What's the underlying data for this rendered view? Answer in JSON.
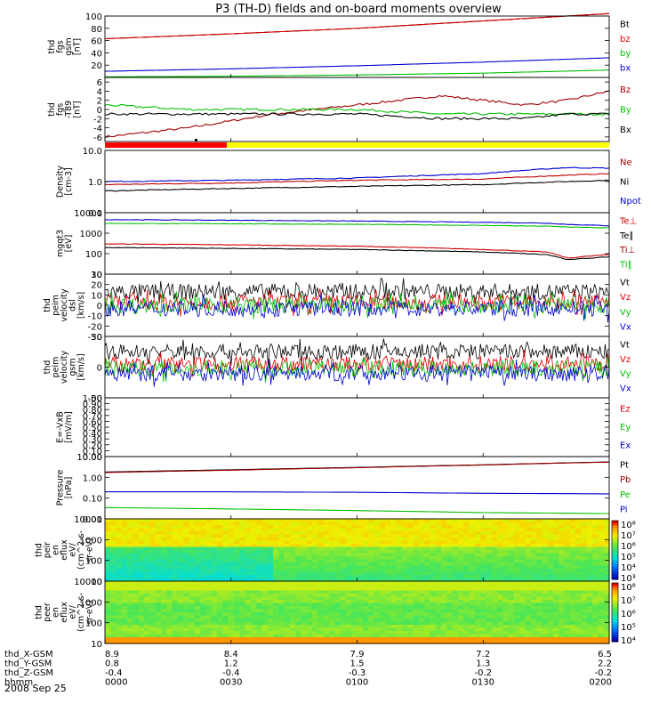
{
  "title": "P3 (TH-D) fields and on-board moments overview",
  "date_label": "2008 Sep 25",
  "ephemeris": {
    "rows": [
      {
        "label": "thd_X-GSM",
        "values": [
          "8.9",
          "8.4",
          "7.9",
          "7.2",
          "6.5"
        ]
      },
      {
        "label": "thd_Y-GSM",
        "values": [
          "0.8",
          "1.2",
          "1.5",
          "1.3",
          "2.2"
        ]
      },
      {
        "label": "thd_Z-GSM",
        "values": [
          "-0.4",
          "-0.4",
          "-0.3",
          "-0.2",
          "-0.2"
        ]
      },
      {
        "label": "hhmm",
        "values": [
          "0000",
          "0030",
          "0100",
          "0130",
          "0200"
        ]
      }
    ]
  },
  "panels": [
    {
      "id": "fgs",
      "ylabel": [
        "thd",
        "fgs",
        "gsm",
        "[nT]"
      ],
      "ticks": [
        "20",
        "40",
        "60",
        "80",
        "100"
      ],
      "legend": [
        {
          "text": "Bt",
          "color": "#000000"
        },
        {
          "text": "bz",
          "color": "#e00000"
        },
        {
          "text": "by",
          "color": "#00c000"
        },
        {
          "text": "bx",
          "color": "#0000d0"
        }
      ]
    },
    {
      "id": "fgs_dev",
      "ylabel": [
        "thd",
        "fgs",
        "-T89",
        "[nT]"
      ],
      "ticks": [
        "-6",
        "-4",
        "-2",
        "0",
        "2",
        "4",
        "6"
      ],
      "legend": [
        {
          "text": "Bz",
          "color": "#a00000"
        },
        {
          "text": "By",
          "color": "#00c000"
        },
        {
          "text": "Bx",
          "color": "#000000"
        }
      ]
    },
    {
      "id": "density",
      "ylabel": [
        "Density",
        "[cm-3]"
      ],
      "ticks": [
        "0.1",
        "1.0",
        "10.0"
      ],
      "legend": [
        {
          "text": "Ne",
          "color": "#a00000"
        },
        {
          "text": "Ni",
          "color": "#000000"
        },
        {
          "text": "Npot",
          "color": "#0000d0"
        }
      ]
    },
    {
      "id": "temp",
      "ylabel": [
        "mgqt3",
        "[eV]"
      ],
      "ticks": [
        "10",
        "100",
        "1000",
        "10000"
      ],
      "legend": [
        {
          "text": "Te⊥",
          "color": "#d00000"
        },
        {
          "text": "Te∥",
          "color": "#000000"
        },
        {
          "text": "Ti⊥",
          "color": "#a00000"
        },
        {
          "text": "Ti∥",
          "color": "#00c000"
        }
      ]
    },
    {
      "id": "peim_dsl",
      "ylabel": [
        "thd",
        "peim",
        "velocity",
        "dsl",
        "[km/s]"
      ],
      "ticks": [
        "-30",
        "-20",
        "-10",
        "0",
        "10",
        "20",
        "30"
      ],
      "legend": [
        {
          "text": "Vt",
          "color": "#000000"
        },
        {
          "text": "Vz",
          "color": "#e00000"
        },
        {
          "text": "Vy",
          "color": "#00c000"
        },
        {
          "text": "Vx",
          "color": "#0000d0"
        }
      ]
    },
    {
      "id": "peim_gsm",
      "ylabel": [
        "thd",
        "peim",
        "velocity",
        "gsm",
        "[km/s]"
      ],
      "ticks": [
        "-50",
        "0",
        "50"
      ],
      "legend": [
        {
          "text": "Vt",
          "color": "#000000"
        },
        {
          "text": "Vz",
          "color": "#e00000"
        },
        {
          "text": "Vy",
          "color": "#00c000"
        },
        {
          "text": "Vx",
          "color": "#0000d0"
        }
      ]
    },
    {
      "id": "efield",
      "ylabel": [
        "E=-VxB",
        "[mV/m]"
      ],
      "ticks": [
        "0.00",
        "0.10",
        "0.20",
        "0.30",
        "0.40",
        "0.50",
        "0.60",
        "0.70",
        "0.80",
        "0.90",
        "1.00"
      ],
      "legend": [
        {
          "text": "Ez",
          "color": "#e00000"
        },
        {
          "text": "Ey",
          "color": "#00c000"
        },
        {
          "text": "Ex",
          "color": "#0000d0"
        }
      ]
    },
    {
      "id": "pressure",
      "ylabel": [
        "Pressure",
        "[nPa]"
      ],
      "ticks": [
        "0.01",
        "0.10",
        "1.00",
        "10.00"
      ],
      "legend": [
        {
          "text": "Pt",
          "color": "#000000"
        },
        {
          "text": "Pb",
          "color": "#a00000"
        },
        {
          "text": "Pe",
          "color": "#00c000"
        },
        {
          "text": "Pi",
          "color": "#0000d0"
        }
      ]
    },
    {
      "id": "peir",
      "ylabel": [
        "thd",
        "peir",
        "en",
        "eflux",
        "eV/",
        "(cm^2-s-",
        "sr-eV)"
      ],
      "ticks": [
        "10",
        "100",
        "1000",
        "10000"
      ],
      "colorbar_ticks": [
        "10³",
        "10⁴",
        "10⁵",
        "10⁶",
        "10⁷",
        "10⁸"
      ]
    },
    {
      "id": "peer",
      "ylabel": [
        "thd",
        "peer",
        "en",
        "eflux",
        "eV/",
        "(cm^2-s-",
        "sr-eV)"
      ],
      "ticks": [
        "10",
        "100",
        "1000",
        "10000"
      ],
      "colorbar_ticks": [
        "10⁴",
        "10⁵",
        "10⁶",
        "10⁷",
        "10⁸"
      ]
    }
  ],
  "chart_data": [
    {
      "type": "line",
      "panel": "fgs",
      "ylim": [
        0,
        100
      ],
      "x": [
        0,
        30,
        60,
        90,
        120
      ],
      "series": [
        {
          "name": "Bt",
          "values": [
            63,
            71,
            80,
            92,
            104
          ]
        },
        {
          "name": "bz",
          "values": [
            63,
            71,
            80,
            92,
            104
          ]
        },
        {
          "name": "by",
          "values": [
            1,
            2,
            4,
            7,
            12
          ]
        },
        {
          "name": "bx",
          "values": [
            10,
            14,
            19,
            25,
            32
          ]
        }
      ]
    },
    {
      "type": "line",
      "panel": "fgs_dev",
      "ylim": [
        -7,
        7
      ],
      "x": [
        0,
        20,
        40,
        60,
        80,
        100,
        110,
        120
      ],
      "series": [
        {
          "name": "Bz",
          "values": [
            -6,
            -4,
            -1,
            1,
            3,
            1,
            2,
            4
          ]
        },
        {
          "name": "By",
          "values": [
            1,
            0,
            0,
            0,
            -1,
            -1,
            -1,
            -1
          ]
        },
        {
          "name": "Bx",
          "values": [
            -1,
            -1,
            -1,
            -1,
            -2,
            -2,
            -1,
            -1
          ]
        }
      ]
    },
    {
      "type": "line",
      "panel": "density",
      "ylim": [
        0.1,
        10
      ],
      "log": true,
      "x": [
        0,
        30,
        60,
        90,
        110,
        120
      ],
      "series": [
        {
          "name": "Ne",
          "values": [
            0.8,
            0.9,
            1.1,
            1.2,
            1.6,
            1.8
          ]
        },
        {
          "name": "Ni",
          "values": [
            0.5,
            0.6,
            0.7,
            0.8,
            1.0,
            1.1
          ]
        },
        {
          "name": "Npot",
          "values": [
            1.0,
            1.1,
            1.3,
            1.8,
            2.8,
            2.7
          ]
        }
      ]
    },
    {
      "type": "line",
      "panel": "temp",
      "ylim": [
        10,
        10000
      ],
      "log": true,
      "x": [
        0,
        30,
        60,
        90,
        105,
        110,
        120
      ],
      "series": [
        {
          "name": "Te⊥",
          "values": [
            300,
            270,
            230,
            160,
            120,
            60,
            90
          ]
        },
        {
          "name": "Te∥",
          "values": [
            200,
            180,
            160,
            120,
            90,
            50,
            70
          ]
        },
        {
          "name": "Ti⊥",
          "values": [
            4600,
            4300,
            3900,
            3400,
            3100,
            2700,
            2300
          ]
        },
        {
          "name": "Ti∥",
          "values": [
            3000,
            2900,
            2700,
            2400,
            2200,
            2000,
            1800
          ]
        }
      ]
    },
    {
      "type": "line",
      "panel": "peim_dsl",
      "ylim": [
        -30,
        30
      ],
      "series": [
        {
          "name": "Vt",
          "mean": 13
        },
        {
          "name": "Vz",
          "mean": 3
        },
        {
          "name": "Vy",
          "mean": 0
        },
        {
          "name": "Vx",
          "mean": -3
        }
      ]
    },
    {
      "type": "line",
      "panel": "peim_gsm",
      "ylim": [
        -50,
        50
      ],
      "series": [
        {
          "name": "Vt",
          "mean": 25
        },
        {
          "name": "Vz",
          "mean": 5
        },
        {
          "name": "Vy",
          "mean": -2
        },
        {
          "name": "Vx",
          "mean": -10
        }
      ]
    },
    {
      "type": "line",
      "panel": "efield",
      "ylim": [
        0,
        1
      ],
      "series": []
    },
    {
      "type": "line",
      "panel": "pressure",
      "ylim": [
        0.01,
        10
      ],
      "log": true,
      "x": [
        0,
        30,
        60,
        90,
        120
      ],
      "series": [
        {
          "name": "Pt",
          "values": [
            1.8,
            2.3,
            3.0,
            4.0,
            5.5
          ]
        },
        {
          "name": "Pb",
          "values": [
            1.7,
            2.2,
            2.9,
            3.9,
            5.4
          ]
        },
        {
          "name": "Pe",
          "values": [
            0.2,
            0.2,
            0.19,
            0.17,
            0.16
          ]
        },
        {
          "name": "Pi",
          "values": [
            0.035,
            0.03,
            0.025,
            0.02,
            0.018
          ]
        }
      ]
    },
    {
      "type": "heatmap",
      "panel": "peir",
      "ylim": [
        10,
        10000
      ]
    },
    {
      "type": "heatmap",
      "panel": "peer",
      "ylim": [
        10,
        10000
      ]
    }
  ],
  "colors": {
    "bar_red": "#ff0000",
    "bar_yellow": "#ffff00"
  }
}
